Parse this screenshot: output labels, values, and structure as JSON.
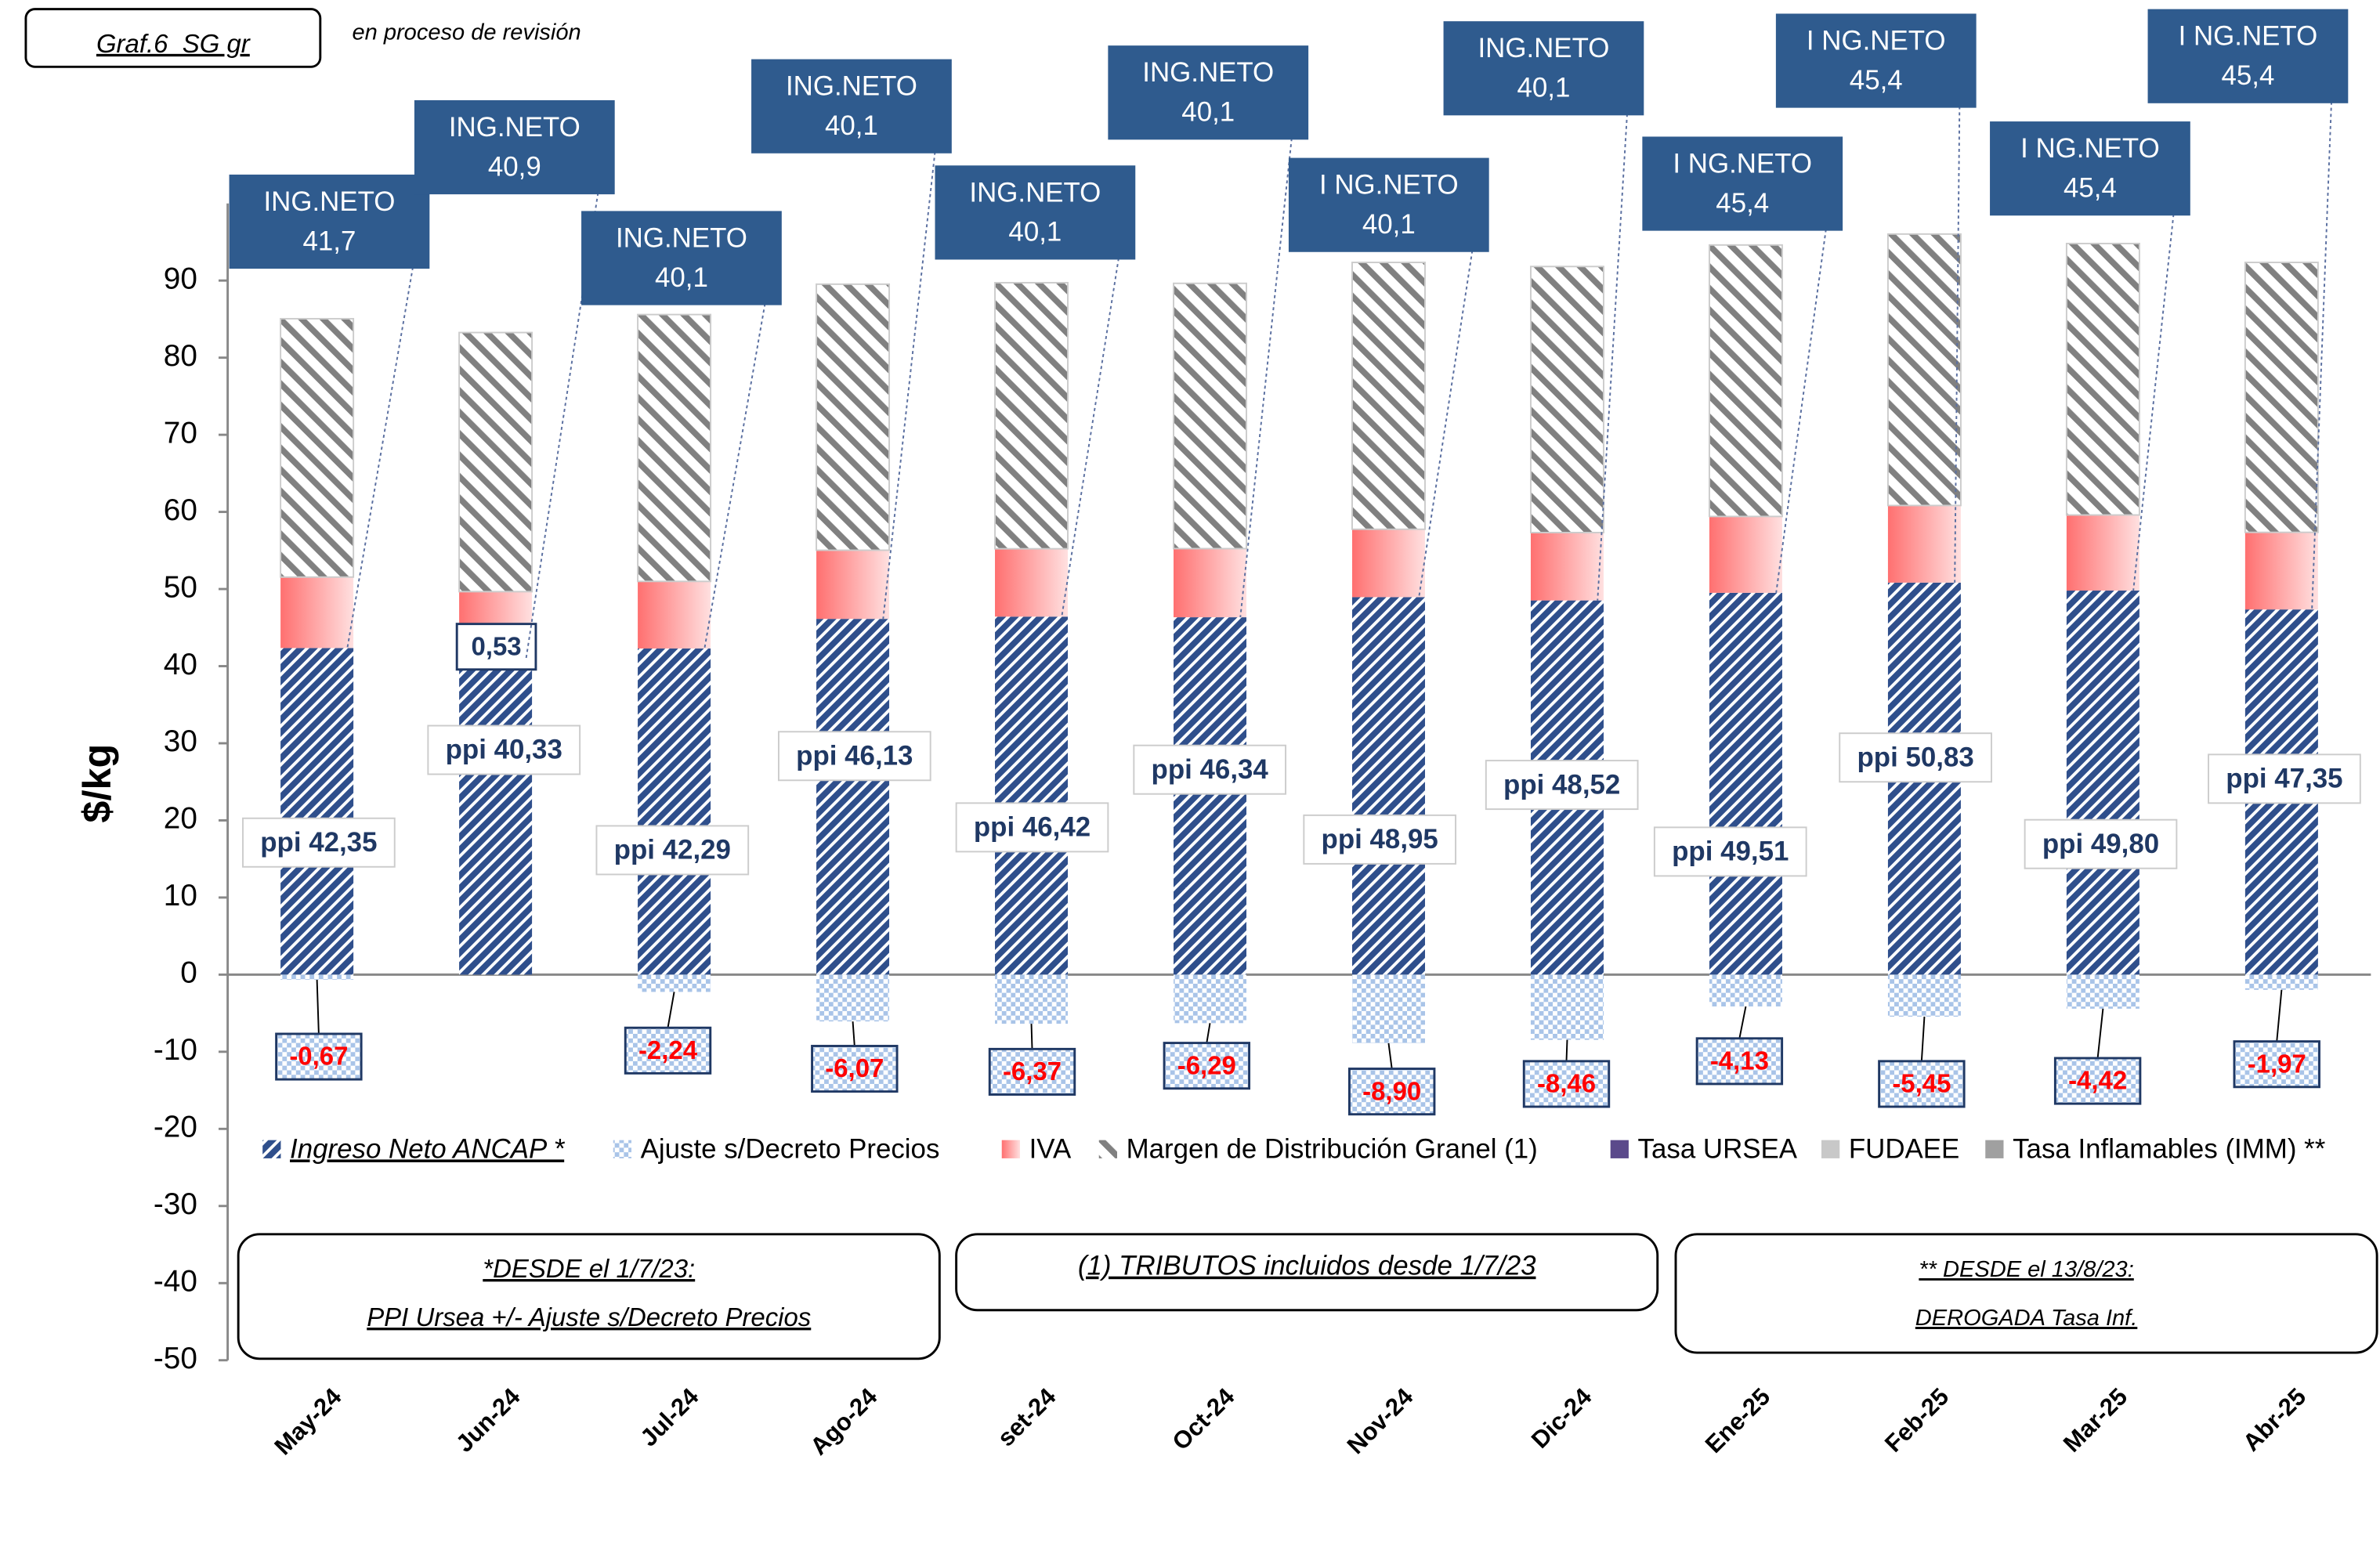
{
  "header": {
    "tag": "Graf.6_SG gr",
    "status": "en proceso de revisión"
  },
  "chart_data": {
    "type": "stacked_bar",
    "y_label": "$/kg",
    "categories": [
      "May-24",
      "Jun-24",
      "Jul-24",
      "Ago-24",
      "set-24",
      "Oct-24",
      "Nov-24",
      "Dic-24",
      "Ene-25",
      "Feb-25",
      "Mar-25",
      "Abr-25"
    ],
    "ylim": [
      -50,
      100
    ],
    "yticks": [
      -50,
      -40,
      -30,
      -20,
      -10,
      0,
      10,
      20,
      30,
      40,
      50,
      60,
      70,
      80,
      90
    ],
    "series": [
      {
        "name": "Ingreso Neto ANCAP *",
        "color": "#2f4f8c",
        "values": [
          42.35,
          40.33,
          42.29,
          46.13,
          46.42,
          46.34,
          48.95,
          48.52,
          49.51,
          50.83,
          49.8,
          47.35
        ],
        "value_labels": [
          "ppi  42,35",
          "ppi  40,33",
          "ppi 42,29",
          "ppi 46,13",
          "ppi 46,42",
          "ppi 46,34",
          "ppi 48,95",
          "ppi 48,52",
          "ppi 49,51",
          "ppi 50,83",
          "ppi 49,80",
          "ppi 47,35"
        ]
      },
      {
        "name": "Ajuste s/Decreto Precios",
        "color": "#a9c4e8",
        "values": [
          -0.67,
          0.53,
          -2.24,
          -6.07,
          -6.37,
          -6.29,
          -8.9,
          -8.46,
          -4.13,
          -5.45,
          -4.42,
          -1.97
        ],
        "value_labels": [
          "-0,67",
          "0,53",
          "-2,24",
          "-6,07",
          "-6,37",
          "-6,29",
          "-8,90",
          "-8,46",
          "-4,13",
          "-5,45",
          "-4,42",
          "-1,97"
        ]
      },
      {
        "name": "IVA",
        "color": "#ff0000",
        "values": [
          9.2,
          8.8,
          8.7,
          8.9,
          8.8,
          8.9,
          8.8,
          8.8,
          9.9,
          10.0,
          9.8,
          10.0
        ]
      },
      {
        "name": "Margen de Distribución Granel (1)",
        "color": "#808080",
        "values": [
          33.5,
          33.6,
          34.6,
          34.5,
          34.5,
          34.4,
          34.6,
          34.5,
          35.2,
          35.2,
          35.2,
          35.0
        ]
      },
      {
        "name": "Tasa URSEA",
        "color": "#5b4a8b",
        "values": [
          0,
          0,
          0,
          0,
          0,
          0,
          0,
          0,
          0,
          0,
          0,
          0
        ]
      },
      {
        "name": "FUDAEE",
        "color": "#c8c8c8",
        "values": [
          0,
          0,
          0,
          0,
          0,
          0,
          0,
          0,
          0,
          0,
          0,
          0
        ]
      },
      {
        "name": "Tasa Inflamables (IMM) **",
        "color": "#a0a0a0",
        "values": [
          0,
          0,
          0,
          0,
          0,
          0,
          0,
          0,
          0,
          0,
          0,
          0
        ]
      }
    ],
    "annotations": [
      {
        "title": "ING.NETO",
        "value": "41,7"
      },
      {
        "title": "ING.NETO",
        "value": "40,9"
      },
      {
        "title": "ING.NETO",
        "value": "40,1"
      },
      {
        "title": "ING.NETO",
        "value": "40,1"
      },
      {
        "title": "ING.NETO",
        "value": "40,1"
      },
      {
        "title": "ING.NETO",
        "value": "40,1"
      },
      {
        "title": "I NG.NETO",
        "value": "40,1"
      },
      {
        "title": "ING.NETO",
        "value": "40,1"
      },
      {
        "title": "I NG.NETO",
        "value": "45,4"
      },
      {
        "title": "I NG.NETO",
        "value": "45,4"
      },
      {
        "title": "I NG.NETO",
        "value": "45,4"
      },
      {
        "title": "I NG.NETO",
        "value": "45,4"
      }
    ],
    "notes": [
      {
        "lines": [
          "*DESDE el 1/7/23:",
          "PPI Ursea +/- Ajuste s/Decreto Precios"
        ]
      },
      {
        "lines": [
          "(1) TRIBUTOS incluidos desde 1/7/23"
        ]
      },
      {
        "lines": [
          "** DESDE el 13/8/23:",
          "DEROGADA Tasa Inf."
        ]
      }
    ]
  }
}
